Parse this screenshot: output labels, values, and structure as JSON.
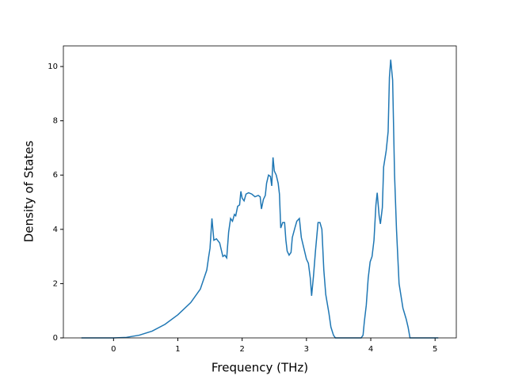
{
  "chart_data": {
    "type": "line",
    "xlabel": "Frequency (THz)",
    "ylabel": "Density of States",
    "x": [
      -0.5,
      0,
      0.2,
      0.4,
      0.6,
      0.8,
      1.0,
      1.2,
      1.35,
      1.45,
      1.48,
      1.5,
      1.53,
      1.56,
      1.6,
      1.65,
      1.7,
      1.73,
      1.76,
      1.79,
      1.82,
      1.85,
      1.88,
      1.9,
      1.93,
      1.96,
      1.98,
      2.0,
      2.03,
      2.06,
      2.1,
      2.15,
      2.2,
      2.25,
      2.28,
      2.3,
      2.33,
      2.36,
      2.38,
      2.41,
      2.44,
      2.46,
      2.48,
      2.5,
      2.53,
      2.56,
      2.58,
      2.6,
      2.63,
      2.66,
      2.68,
      2.7,
      2.73,
      2.76,
      2.78,
      2.82,
      2.85,
      2.89,
      2.92,
      2.96,
      3.0,
      3.03,
      3.06,
      3.08,
      3.11,
      3.14,
      3.18,
      3.21,
      3.24,
      3.27,
      3.3,
      3.35,
      3.38,
      3.42,
      3.45,
      3.85,
      3.88,
      3.9,
      3.93,
      3.96,
      3.99,
      4.02,
      4.05,
      4.08,
      4.1,
      4.13,
      4.15,
      4.18,
      4.2,
      4.24,
      4.27,
      4.29,
      4.31,
      4.34,
      4.37,
      4.4,
      4.44,
      4.5,
      4.55,
      4.58,
      4.61,
      5.05
    ],
    "series": [
      {
        "color": "#1f77b4",
        "values": [
          0,
          0,
          0.02,
          0.1,
          0.25,
          0.5,
          0.85,
          1.3,
          1.8,
          2.5,
          3.0,
          3.3,
          4.4,
          3.6,
          3.65,
          3.5,
          3.0,
          3.05,
          2.95,
          3.9,
          4.4,
          4.3,
          4.55,
          4.5,
          4.85,
          4.9,
          5.4,
          5.15,
          5.05,
          5.3,
          5.35,
          5.3,
          5.2,
          5.25,
          5.2,
          4.75,
          5.1,
          5.25,
          5.7,
          6.0,
          5.95,
          5.6,
          6.65,
          6.15,
          6.0,
          5.7,
          5.3,
          4.05,
          4.25,
          4.25,
          3.6,
          3.2,
          3.05,
          3.15,
          3.7,
          4.05,
          4.3,
          4.4,
          3.7,
          3.3,
          2.9,
          2.75,
          2.2,
          1.55,
          2.3,
          3.2,
          4.25,
          4.25,
          4.0,
          2.5,
          1.6,
          0.9,
          0.4,
          0.1,
          0,
          0,
          0.1,
          0.6,
          1.2,
          2.2,
          2.8,
          3.0,
          3.6,
          4.9,
          5.35,
          4.5,
          4.2,
          4.8,
          6.3,
          6.9,
          7.6,
          9.6,
          10.25,
          9.5,
          6.0,
          4.0,
          2.0,
          1.1,
          0.7,
          0.4,
          0,
          0
        ]
      }
    ],
    "xlim": [
      -0.78,
      5.33
    ],
    "xticks": [
      0,
      1,
      2,
      3,
      4,
      5
    ],
    "ylim": [
      0,
      10.76
    ],
    "yticks": [
      0,
      2,
      4,
      6,
      8,
      10
    ]
  }
}
